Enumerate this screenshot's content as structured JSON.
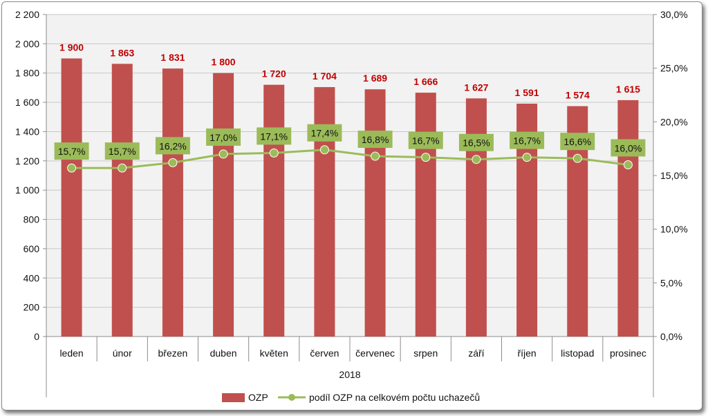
{
  "chart_data": {
    "type": "bar",
    "categories": [
      "leden",
      "únor",
      "březen",
      "duben",
      "květen",
      "červen",
      "červenec",
      "srpen",
      "září",
      "říjen",
      "listopad",
      "prosinec"
    ],
    "group_label": "2018",
    "series": [
      {
        "name": "OZP",
        "type": "bar",
        "axis": "left",
        "values": [
          1900,
          1863,
          1831,
          1800,
          1720,
          1704,
          1689,
          1666,
          1627,
          1591,
          1574,
          1615
        ],
        "labels": [
          "1 900",
          "1 863",
          "1 831",
          "1 800",
          "1 720",
          "1 704",
          "1 689",
          "1 666",
          "1 627",
          "1 591",
          "1 574",
          "1 615"
        ],
        "color": "#c0504d",
        "label_color": "#c00000"
      },
      {
        "name": "podíl OZP na celkovém počtu uchazečů",
        "type": "line",
        "axis": "right",
        "values": [
          15.7,
          15.7,
          16.2,
          17.0,
          17.1,
          17.4,
          16.8,
          16.7,
          16.5,
          16.7,
          16.6,
          16.0
        ],
        "labels": [
          "15,7%",
          "15,7%",
          "16,2%",
          "17,0%",
          "17,1%",
          "17,4%",
          "16,8%",
          "16,7%",
          "16,5%",
          "16,7%",
          "16,6%",
          "16,0%"
        ],
        "color": "#9bbb59"
      }
    ],
    "y_left": {
      "lim": [
        0,
        2200
      ],
      "ticks": [
        0,
        200,
        400,
        600,
        800,
        1000,
        1200,
        1400,
        1600,
        1800,
        2000,
        2200
      ],
      "tick_labels": [
        "0",
        "200",
        "400",
        "600",
        "800",
        "1 000",
        "1 200",
        "1 400",
        "1 600",
        "1 800",
        "2 000",
        "2 200"
      ]
    },
    "y_right": {
      "lim": [
        0,
        30
      ],
      "ticks": [
        0,
        5,
        10,
        15,
        20,
        25,
        30
      ],
      "tick_labels": [
        "0,0%",
        "5,0%",
        "10,0%",
        "15,0%",
        "20,0%",
        "25,0%",
        "30,0%"
      ]
    },
    "plot_background": "#f2f2f2",
    "grid": true,
    "legend_position": "bottom"
  }
}
